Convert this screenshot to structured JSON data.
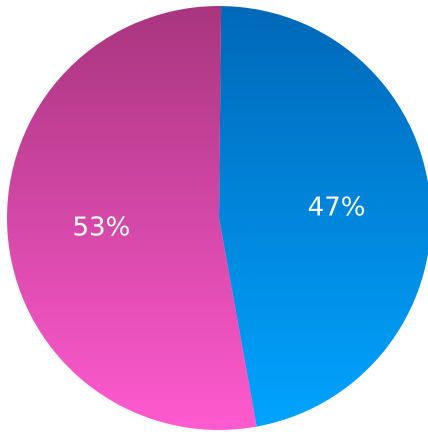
{
  "chart_data": {
    "type": "pie",
    "title": "",
    "legend": "none",
    "slices": [
      {
        "label": "47%",
        "value": 47,
        "color_top": "#0068b8",
        "color_bottom": "#00a4ff"
      },
      {
        "label": "53%",
        "value": 53,
        "color_top": "#a8357e",
        "color_bottom": "#ff5ad0"
      }
    ]
  }
}
